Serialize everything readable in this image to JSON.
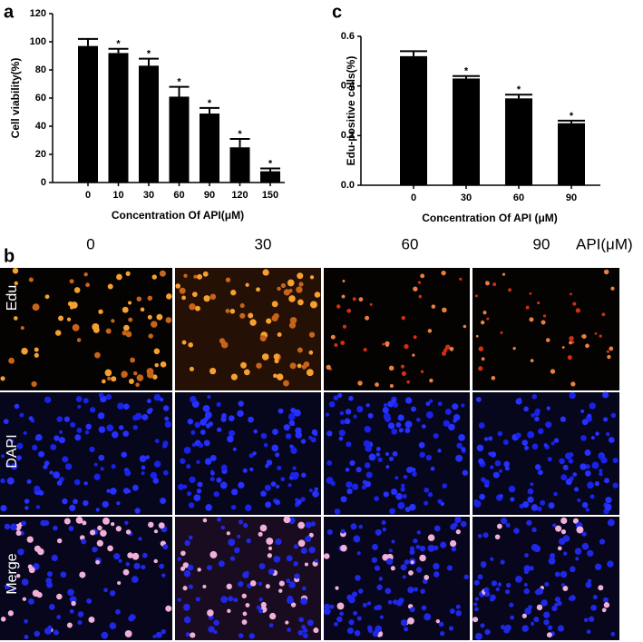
{
  "chart_data": [
    {
      "type": "bar",
      "panel": "a",
      "y_label": "Cell viability(%)",
      "x_label": "Concentration Of API(μM)",
      "categories": [
        "0",
        "10",
        "30",
        "60",
        "90",
        "120",
        "150"
      ],
      "values": [
        97,
        92,
        83,
        61,
        49,
        25,
        8
      ],
      "errors": [
        5,
        3,
        5,
        7,
        4,
        6,
        2
      ],
      "value_annotations": [
        null,
        "*",
        "*",
        "*",
        "*",
        "*",
        "*"
      ],
      "color": "#000000",
      "ylim": [
        0,
        120
      ],
      "yticks": [
        0,
        20,
        40,
        60,
        80,
        100,
        120
      ]
    },
    {
      "type": "bar",
      "panel": "c",
      "y_label": "Edu-positive cells(%)",
      "x_label": "Concentration Of API (μM)",
      "categories": [
        "0",
        "30",
        "60",
        "90"
      ],
      "values": [
        0.52,
        0.43,
        0.35,
        0.25
      ],
      "errors": [
        0.02,
        0.01,
        0.015,
        0.01
      ],
      "value_annotations": [
        null,
        "*",
        "*",
        "*"
      ],
      "color": "#000000",
      "ylim": [
        0,
        0.6
      ],
      "yticks": [
        {
          "value": 0,
          "label": "0.0"
        },
        0.2,
        0.4,
        0.6
      ]
    }
  ],
  "panel_b": {
    "panel": "b",
    "columns": [
      "0",
      "30",
      "60",
      "90"
    ],
    "unit_label": "API(μM)",
    "rows": [
      "Edu",
      "DAPI",
      "Merge"
    ]
  }
}
